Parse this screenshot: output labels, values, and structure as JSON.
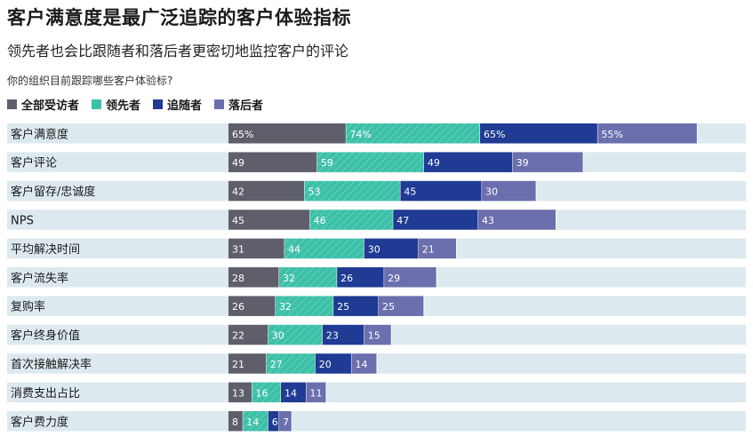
{
  "header": {
    "title": "客户满意度是最广泛追踪的客户体验指标",
    "subtitle": "领先者也会比跟随者和落后者更密切地监控客户的评论",
    "question": "你的组织目前跟踪哪些客户体验标?"
  },
  "colors": {
    "all": "#5f5f6b",
    "leaders": "#3cc0a8",
    "followers": "#1f3b94",
    "laggards": "#6b6fae",
    "row_bg": "#dce9ee"
  },
  "chart_data": {
    "type": "bar",
    "stacked": true,
    "orientation": "horizontal",
    "title": "客户满意度是最广泛追踪的客户体验指标",
    "xlim": [
      0,
      277
    ],
    "categories": [
      "客户满意度",
      "客户评论",
      "客户留存/忠诚度",
      "NPS",
      "平均解决时间",
      "客户流失率",
      "复购率",
      "客户终身价值",
      "首次接触解决率",
      "消费支出占比",
      "客户费力度"
    ],
    "series": [
      {
        "name": "全部受访者",
        "key": "all",
        "labels": [
          "65%",
          "49",
          "42",
          "45",
          "31",
          "28",
          "26",
          "22",
          "21",
          "13",
          "8"
        ],
        "values": [
          65,
          49,
          42,
          45,
          31,
          28,
          26,
          22,
          21,
          13,
          8
        ]
      },
      {
        "name": "领先者",
        "key": "leaders",
        "labels": [
          "74%",
          "59",
          "53",
          "46",
          "44",
          "32",
          "32",
          "30",
          "27",
          "16",
          "14"
        ],
        "values": [
          74,
          59,
          53,
          46,
          44,
          32,
          32,
          30,
          27,
          16,
          14
        ]
      },
      {
        "name": "追随者",
        "key": "followers",
        "labels": [
          "65%",
          "49",
          "45",
          "47",
          "30",
          "26",
          "25",
          "23",
          "20",
          "14",
          "6"
        ],
        "values": [
          65,
          49,
          45,
          47,
          30,
          26,
          25,
          23,
          20,
          14,
          6
        ]
      },
      {
        "name": "落后者",
        "key": "laggards",
        "labels": [
          "55%",
          "39",
          "30",
          "43",
          "21",
          "29",
          "25",
          "15",
          "14",
          "11",
          "7"
        ],
        "values": [
          55,
          39,
          30,
          43,
          21,
          29,
          25,
          15,
          14,
          11,
          7
        ]
      }
    ],
    "legend_position": "top-left"
  }
}
